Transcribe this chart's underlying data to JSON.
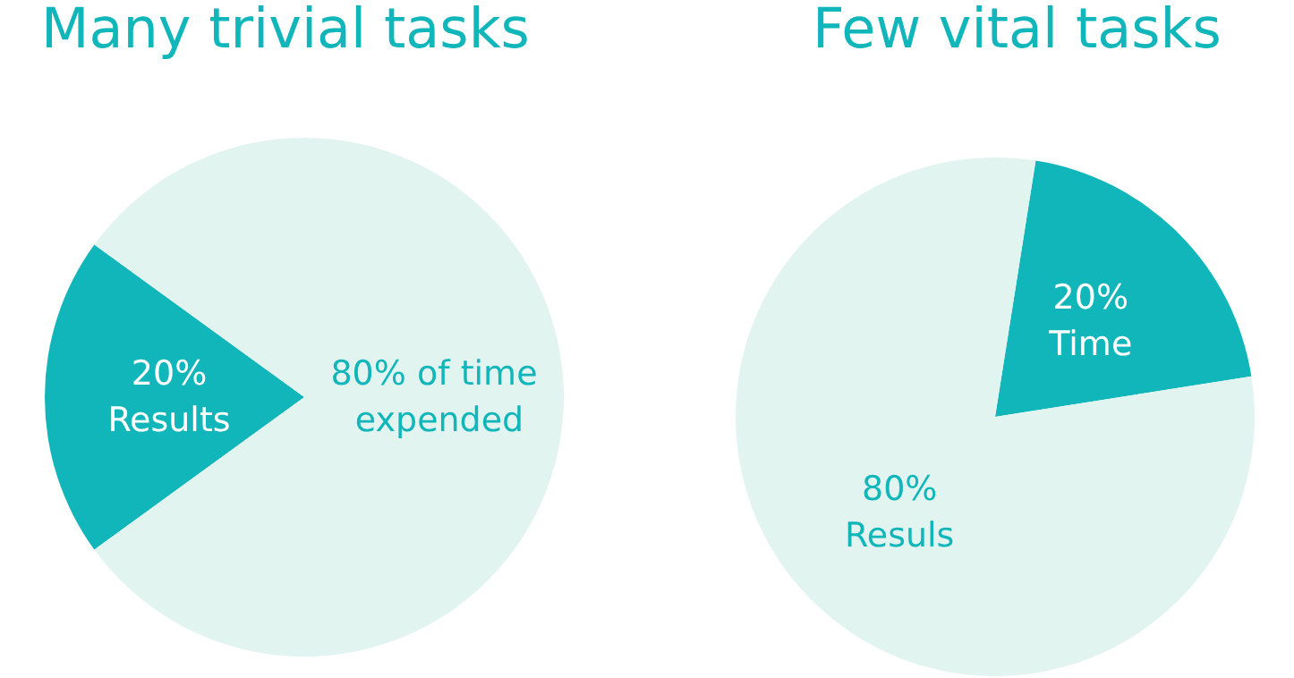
{
  "chart_data": [
    {
      "type": "pie",
      "title": "Many trivial tasks",
      "categories": [
        "Results",
        "of time expended"
      ],
      "values": [
        20,
        80
      ],
      "value_labels": [
        "20%",
        "80%"
      ],
      "colors": [
        "#10b6b9",
        "#e2f4f0"
      ],
      "legend": false
    },
    {
      "type": "pie",
      "title": "Few vital tasks",
      "categories": [
        "Time",
        "Resuls"
      ],
      "values": [
        20,
        80
      ],
      "value_labels": [
        "20%",
        "80%"
      ],
      "colors": [
        "#10b6b9",
        "#e2f4f0"
      ],
      "legend": false
    }
  ]
}
